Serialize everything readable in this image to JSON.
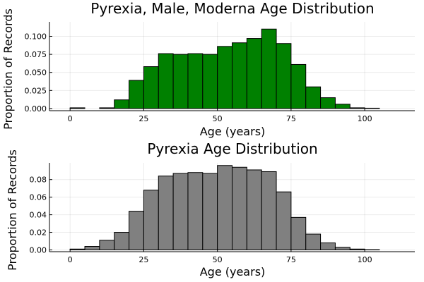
{
  "chart_data": [
    {
      "type": "bar",
      "title": "Pyrexia, Male, Moderna Age Distribution",
      "xlabel": "Age (years)",
      "ylabel": "Proportion of Records",
      "bar_color": "#008000",
      "bin_width": 5,
      "bin_starts": [
        0,
        5,
        10,
        15,
        20,
        25,
        30,
        35,
        40,
        45,
        50,
        55,
        60,
        65,
        70,
        75,
        80,
        85,
        90,
        95,
        100,
        105
      ],
      "values": [
        0.001,
        0.0,
        0.001,
        0.012,
        0.039,
        0.058,
        0.076,
        0.075,
        0.076,
        0.075,
        0.086,
        0.091,
        0.097,
        0.11,
        0.09,
        0.061,
        0.03,
        0.015,
        0.006,
        0.001,
        0.0005,
        0.0
      ],
      "xlim": [
        -7,
        117
      ],
      "ylim": [
        -0.003,
        0.12
      ],
      "xticks": [
        0,
        25,
        50,
        75,
        100
      ],
      "xtick_labels": [
        "0",
        "25",
        "50",
        "75",
        "100"
      ],
      "yticks": [
        0.0,
        0.025,
        0.05,
        0.075,
        0.1
      ],
      "ytick_labels": [
        "0.000",
        "0.025",
        "0.050",
        "0.075",
        "0.100"
      ],
      "grid": true,
      "legend": "none"
    },
    {
      "type": "bar",
      "title": "Pyrexia Age Distribution",
      "xlabel": "Age (years)",
      "ylabel": "Proportion of Records",
      "bar_color": "#808080",
      "bin_width": 5,
      "bin_starts": [
        0,
        5,
        10,
        15,
        20,
        25,
        30,
        35,
        40,
        45,
        50,
        55,
        60,
        65,
        70,
        75,
        80,
        85,
        90,
        95,
        100,
        105
      ],
      "values": [
        0.001,
        0.004,
        0.011,
        0.02,
        0.044,
        0.068,
        0.084,
        0.087,
        0.088,
        0.087,
        0.096,
        0.094,
        0.091,
        0.089,
        0.066,
        0.037,
        0.018,
        0.008,
        0.003,
        0.001,
        0.0003,
        0.0
      ],
      "xlim": [
        -7,
        117
      ],
      "ylim": [
        -0.002,
        0.099
      ],
      "xticks": [
        0,
        25,
        50,
        75,
        100
      ],
      "xtick_labels": [
        "0",
        "25",
        "50",
        "75",
        "100"
      ],
      "yticks": [
        0.0,
        0.02,
        0.04,
        0.06,
        0.08
      ],
      "ytick_labels": [
        "0.00",
        "0.02",
        "0.04",
        "0.06",
        "0.08"
      ],
      "grid": true,
      "legend": "none"
    }
  ]
}
